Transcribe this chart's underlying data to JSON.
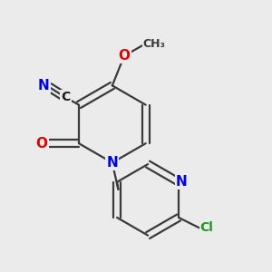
{
  "background_color": "#ebebeb",
  "bond_color": "#3a3a3a",
  "bond_width": 1.6,
  "atom_colors": {
    "N": "#0000dd",
    "O": "#dd0000",
    "Cl": "#1a9a1a",
    "C": "#1a1a1a",
    "default": "#3a3a3a"
  },
  "font_size_atom": 10,
  "fig_width": 3.0,
  "fig_height": 3.0,
  "dpi": 100
}
